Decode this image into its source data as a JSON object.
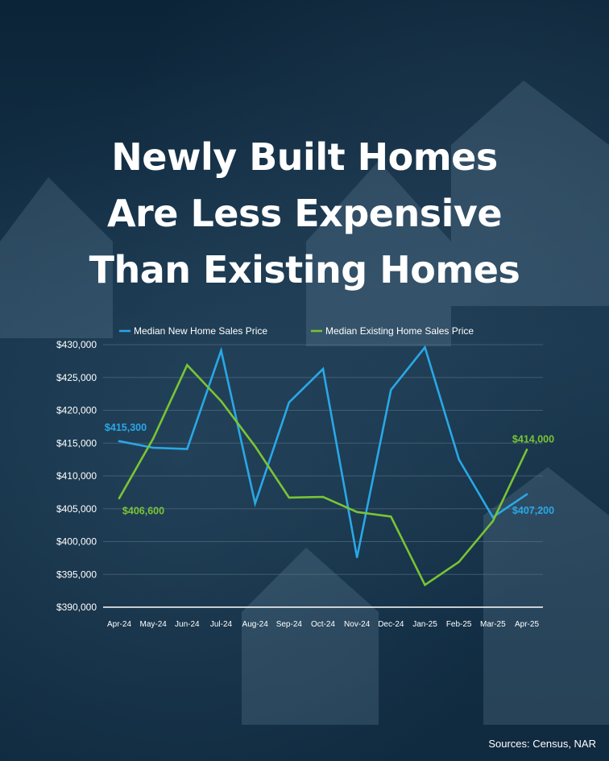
{
  "title_lines": [
    "Newly Built Homes",
    "Are Less Expensive",
    "Than Existing Homes"
  ],
  "source": "Sources: Census, NAR",
  "colors": {
    "new": "#29a8e6",
    "existing": "#7ac434",
    "grid": "#5c7386",
    "axis": "#ffffff"
  },
  "chart_data": {
    "type": "line",
    "categories": [
      "Apr-24",
      "May-24",
      "Jun-24",
      "Jul-24",
      "Aug-24",
      "Sep-24",
      "Oct-24",
      "Nov-24",
      "Dec-24",
      "Jan-25",
      "Feb-25",
      "Mar-25",
      "Apr-25"
    ],
    "ylim": [
      390000,
      430000
    ],
    "yticks": [
      430000,
      425000,
      420000,
      415000,
      410000,
      405000,
      400000,
      395000,
      390000
    ],
    "ytick_labels": [
      "$430,000",
      "$425,000",
      "$420,000",
      "$415,000",
      "$410,000",
      "$405,000",
      "$400,000",
      "$395,000",
      "$390,000"
    ],
    "legend_position": "top",
    "grid": true,
    "series": [
      {
        "name": "Median New Home Sales Price",
        "color": "#29a8e6",
        "values": [
          415300,
          414300,
          414100,
          429100,
          405800,
          421200,
          426300,
          397600,
          423100,
          429600,
          412500,
          403700,
          407200
        ]
      },
      {
        "name": "Median Existing Home Sales Price",
        "color": "#7ac434",
        "values": [
          406600,
          415700,
          426900,
          421400,
          414500,
          406700,
          406800,
          404500,
          403800,
          393400,
          396900,
          403100,
          414000
        ]
      }
    ],
    "annotations": [
      {
        "series": 0,
        "index": 0,
        "text": "$415,300"
      },
      {
        "series": 1,
        "index": 0,
        "text": "$406,600"
      },
      {
        "series": 1,
        "index": 12,
        "text": "$414,000"
      },
      {
        "series": 0,
        "index": 12,
        "text": "$407,200"
      }
    ]
  }
}
